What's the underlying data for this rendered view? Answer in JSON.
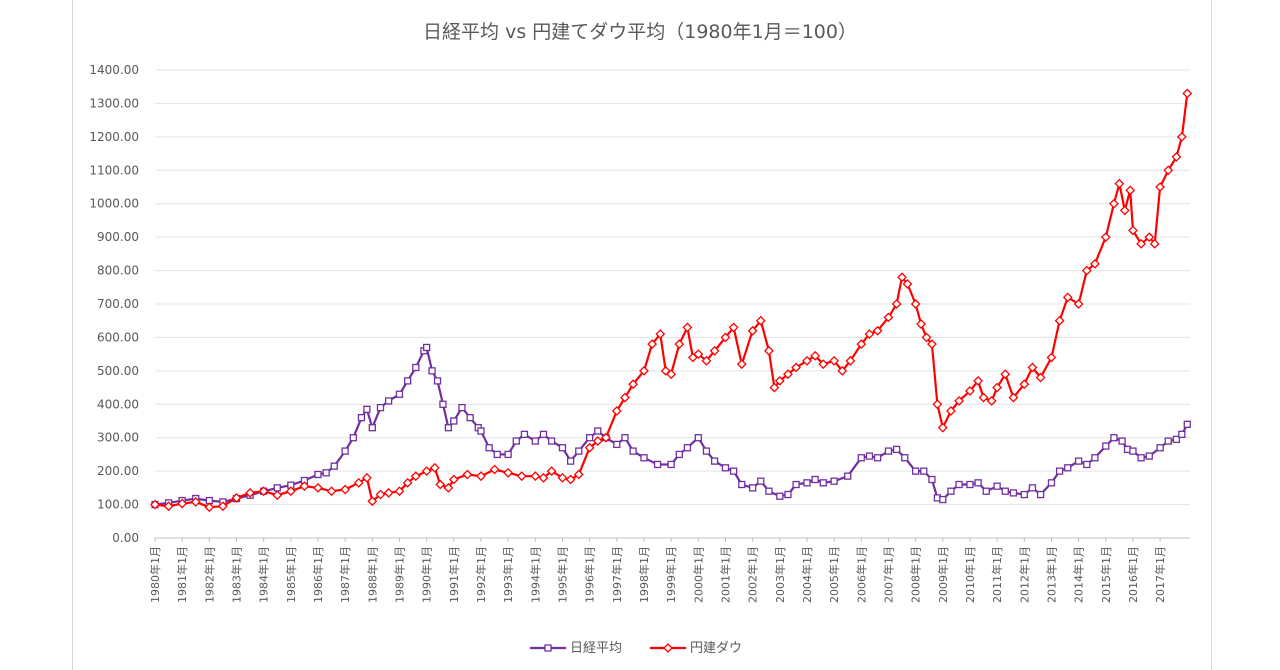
{
  "chart_data": {
    "type": "line",
    "title": "日経平均 vs 円建てダウ平均（1980年1月＝100）",
    "xlabel": "",
    "ylabel": "",
    "ylim": [
      0,
      1400
    ],
    "yticks": [
      "0.00",
      "100.00",
      "200.00",
      "300.00",
      "400.00",
      "500.00",
      "600.00",
      "700.00",
      "800.00",
      "900.00",
      "1000.00",
      "1100.00",
      "1200.00",
      "1300.00",
      "1400.00"
    ],
    "xticks": [
      "1980年1月",
      "1981年1月",
      "1982年1月",
      "1983年1月",
      "1984年1月",
      "1985年1月",
      "1986年1月",
      "1987年1月",
      "1988年1月",
      "1989年1月",
      "1990年1月",
      "1991年1月",
      "1992年1月",
      "1993年1月",
      "1994年1月",
      "1995年1月",
      "1996年1月",
      "1997年1月",
      "1998年1月",
      "1999年1月",
      "2000年1月",
      "2001年1月",
      "2002年1月",
      "2003年1月",
      "2004年1月",
      "2005年1月",
      "2006年1月",
      "2007年1月",
      "2008年1月",
      "2009年1月",
      "2010年1月",
      "2011年1月",
      "2012年1月",
      "2013年1月",
      "2014年1月",
      "2015年1月",
      "2016年1月",
      "2017年1月"
    ],
    "xrange": [
      1980.0,
      2018.1
    ],
    "grid": true,
    "legend_position": "bottom",
    "series": [
      {
        "name": "日経平均",
        "color": "#7030a0",
        "marker": "square",
        "points": [
          [
            1980.0,
            100
          ],
          [
            1980.5,
            105
          ],
          [
            1981.0,
            112
          ],
          [
            1981.5,
            118
          ],
          [
            1982.0,
            112
          ],
          [
            1982.5,
            108
          ],
          [
            1983.0,
            118
          ],
          [
            1983.5,
            128
          ],
          [
            1984.0,
            140
          ],
          [
            1984.5,
            150
          ],
          [
            1985.0,
            158
          ],
          [
            1985.5,
            172
          ],
          [
            1986.0,
            190
          ],
          [
            1986.3,
            195
          ],
          [
            1986.6,
            215
          ],
          [
            1987.0,
            260
          ],
          [
            1987.3,
            300
          ],
          [
            1987.6,
            360
          ],
          [
            1987.8,
            385
          ],
          [
            1988.0,
            330
          ],
          [
            1988.3,
            390
          ],
          [
            1988.6,
            410
          ],
          [
            1989.0,
            430
          ],
          [
            1989.3,
            470
          ],
          [
            1989.6,
            510
          ],
          [
            1989.9,
            560
          ],
          [
            1990.0,
            570
          ],
          [
            1990.2,
            500
          ],
          [
            1990.4,
            470
          ],
          [
            1990.6,
            400
          ],
          [
            1990.8,
            330
          ],
          [
            1991.0,
            350
          ],
          [
            1991.3,
            390
          ],
          [
            1991.6,
            360
          ],
          [
            1991.9,
            330
          ],
          [
            1992.0,
            320
          ],
          [
            1992.3,
            270
          ],
          [
            1992.6,
            250
          ],
          [
            1993.0,
            250
          ],
          [
            1993.3,
            290
          ],
          [
            1993.6,
            310
          ],
          [
            1994.0,
            290
          ],
          [
            1994.3,
            310
          ],
          [
            1994.6,
            290
          ],
          [
            1995.0,
            270
          ],
          [
            1995.3,
            230
          ],
          [
            1995.6,
            260
          ],
          [
            1996.0,
            300
          ],
          [
            1996.3,
            320
          ],
          [
            1996.6,
            300
          ],
          [
            1997.0,
            280
          ],
          [
            1997.3,
            300
          ],
          [
            1997.6,
            260
          ],
          [
            1998.0,
            240
          ],
          [
            1998.5,
            220
          ],
          [
            1999.0,
            220
          ],
          [
            1999.3,
            250
          ],
          [
            1999.6,
            270
          ],
          [
            2000.0,
            300
          ],
          [
            2000.3,
            260
          ],
          [
            2000.6,
            230
          ],
          [
            2001.0,
            210
          ],
          [
            2001.3,
            200
          ],
          [
            2001.6,
            160
          ],
          [
            2002.0,
            150
          ],
          [
            2002.3,
            170
          ],
          [
            2002.6,
            140
          ],
          [
            2003.0,
            125
          ],
          [
            2003.3,
            130
          ],
          [
            2003.6,
            160
          ],
          [
            2004.0,
            165
          ],
          [
            2004.3,
            175
          ],
          [
            2004.6,
            165
          ],
          [
            2005.0,
            170
          ],
          [
            2005.5,
            185
          ],
          [
            2006.0,
            240
          ],
          [
            2006.3,
            245
          ],
          [
            2006.6,
            240
          ],
          [
            2007.0,
            260
          ],
          [
            2007.3,
            265
          ],
          [
            2007.6,
            240
          ],
          [
            2008.0,
            200
          ],
          [
            2008.3,
            200
          ],
          [
            2008.6,
            175
          ],
          [
            2008.8,
            120
          ],
          [
            2009.0,
            115
          ],
          [
            2009.3,
            140
          ],
          [
            2009.6,
            160
          ],
          [
            2010.0,
            160
          ],
          [
            2010.3,
            165
          ],
          [
            2010.6,
            140
          ],
          [
            2011.0,
            155
          ],
          [
            2011.3,
            140
          ],
          [
            2011.6,
            135
          ],
          [
            2012.0,
            130
          ],
          [
            2012.3,
            150
          ],
          [
            2012.6,
            130
          ],
          [
            2013.0,
            165
          ],
          [
            2013.3,
            200
          ],
          [
            2013.6,
            210
          ],
          [
            2014.0,
            230
          ],
          [
            2014.3,
            220
          ],
          [
            2014.6,
            240
          ],
          [
            2015.0,
            275
          ],
          [
            2015.3,
            300
          ],
          [
            2015.6,
            290
          ],
          [
            2015.8,
            265
          ],
          [
            2016.0,
            260
          ],
          [
            2016.3,
            240
          ],
          [
            2016.6,
            245
          ],
          [
            2017.0,
            270
          ],
          [
            2017.3,
            290
          ],
          [
            2017.6,
            295
          ],
          [
            2017.8,
            310
          ],
          [
            2018.0,
            340
          ]
        ]
      },
      {
        "name": "円建ダウ",
        "color": "#ff0000",
        "marker": "diamond",
        "points": [
          [
            1980.0,
            100
          ],
          [
            1980.5,
            95
          ],
          [
            1981.0,
            103
          ],
          [
            1981.5,
            108
          ],
          [
            1982.0,
            92
          ],
          [
            1982.5,
            95
          ],
          [
            1983.0,
            120
          ],
          [
            1983.5,
            135
          ],
          [
            1984.0,
            140
          ],
          [
            1984.5,
            128
          ],
          [
            1985.0,
            140
          ],
          [
            1985.5,
            155
          ],
          [
            1986.0,
            150
          ],
          [
            1986.5,
            140
          ],
          [
            1987.0,
            145
          ],
          [
            1987.5,
            165
          ],
          [
            1987.8,
            180
          ],
          [
            1988.0,
            110
          ],
          [
            1988.3,
            130
          ],
          [
            1988.6,
            135
          ],
          [
            1989.0,
            140
          ],
          [
            1989.3,
            165
          ],
          [
            1989.6,
            185
          ],
          [
            1990.0,
            200
          ],
          [
            1990.3,
            210
          ],
          [
            1990.5,
            160
          ],
          [
            1990.8,
            150
          ],
          [
            1991.0,
            175
          ],
          [
            1991.5,
            190
          ],
          [
            1992.0,
            185
          ],
          [
            1992.5,
            205
          ],
          [
            1993.0,
            195
          ],
          [
            1993.5,
            185
          ],
          [
            1994.0,
            185
          ],
          [
            1994.3,
            180
          ],
          [
            1994.6,
            200
          ],
          [
            1995.0,
            180
          ],
          [
            1995.3,
            175
          ],
          [
            1995.6,
            190
          ],
          [
            1996.0,
            270
          ],
          [
            1996.3,
            290
          ],
          [
            1996.6,
            300
          ],
          [
            1997.0,
            380
          ],
          [
            1997.3,
            420
          ],
          [
            1997.6,
            460
          ],
          [
            1998.0,
            500
          ],
          [
            1998.3,
            580
          ],
          [
            1998.6,
            610
          ],
          [
            1998.8,
            500
          ],
          [
            1999.0,
            490
          ],
          [
            1999.3,
            580
          ],
          [
            1999.6,
            630
          ],
          [
            1999.8,
            540
          ],
          [
            2000.0,
            550
          ],
          [
            2000.3,
            530
          ],
          [
            2000.6,
            560
          ],
          [
            2001.0,
            600
          ],
          [
            2001.3,
            630
          ],
          [
            2001.6,
            520
          ],
          [
            2002.0,
            620
          ],
          [
            2002.3,
            650
          ],
          [
            2002.6,
            560
          ],
          [
            2002.8,
            450
          ],
          [
            2003.0,
            470
          ],
          [
            2003.3,
            490
          ],
          [
            2003.6,
            510
          ],
          [
            2004.0,
            530
          ],
          [
            2004.3,
            545
          ],
          [
            2004.6,
            520
          ],
          [
            2005.0,
            530
          ],
          [
            2005.3,
            500
          ],
          [
            2005.6,
            530
          ],
          [
            2006.0,
            580
          ],
          [
            2006.3,
            610
          ],
          [
            2006.6,
            620
          ],
          [
            2007.0,
            660
          ],
          [
            2007.3,
            700
          ],
          [
            2007.5,
            780
          ],
          [
            2007.7,
            760
          ],
          [
            2008.0,
            700
          ],
          [
            2008.2,
            640
          ],
          [
            2008.4,
            600
          ],
          [
            2008.6,
            580
          ],
          [
            2008.8,
            400
          ],
          [
            2009.0,
            330
          ],
          [
            2009.3,
            380
          ],
          [
            2009.6,
            410
          ],
          [
            2010.0,
            440
          ],
          [
            2010.3,
            470
          ],
          [
            2010.5,
            420
          ],
          [
            2010.8,
            410
          ],
          [
            2011.0,
            450
          ],
          [
            2011.3,
            490
          ],
          [
            2011.6,
            420
          ],
          [
            2012.0,
            460
          ],
          [
            2012.3,
            510
          ],
          [
            2012.6,
            480
          ],
          [
            2013.0,
            540
          ],
          [
            2013.3,
            650
          ],
          [
            2013.6,
            720
          ],
          [
            2014.0,
            700
          ],
          [
            2014.3,
            800
          ],
          [
            2014.6,
            820
          ],
          [
            2015.0,
            900
          ],
          [
            2015.3,
            1000
          ],
          [
            2015.5,
            1060
          ],
          [
            2015.7,
            980
          ],
          [
            2015.9,
            1040
          ],
          [
            2016.0,
            920
          ],
          [
            2016.3,
            880
          ],
          [
            2016.6,
            900
          ],
          [
            2016.8,
            880
          ],
          [
            2017.0,
            1050
          ],
          [
            2017.3,
            1100
          ],
          [
            2017.6,
            1140
          ],
          [
            2017.8,
            1200
          ],
          [
            2018.0,
            1330
          ]
        ]
      }
    ]
  }
}
